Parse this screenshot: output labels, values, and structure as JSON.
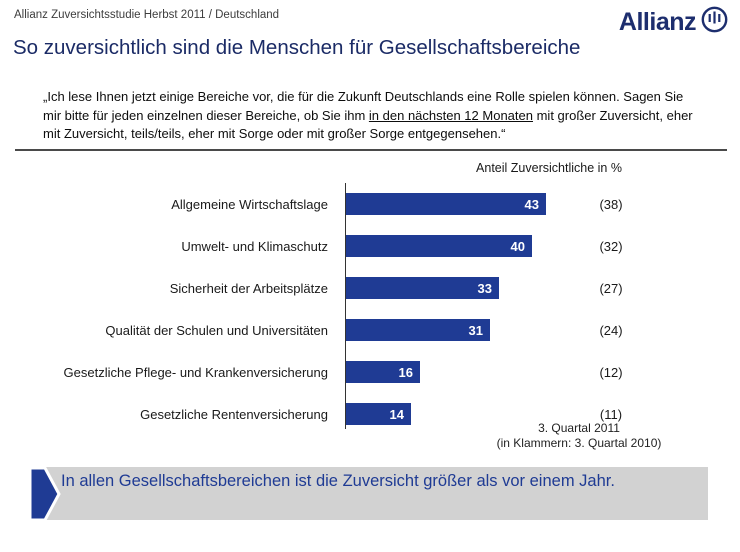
{
  "header": {
    "study_label": "Allianz Zuversichtsstudie Herbst 2011 / Deutschland",
    "logo_text": "Allianz"
  },
  "title": "So zuversichtlich sind die Menschen für Gesellschaftsbereiche",
  "quote": {
    "part1": "„Ich lese Ihnen jetzt einige Bereiche vor, die für die Zukunft Deutschlands eine Rolle spielen können. Sagen Sie mir bitte für jeden einzelnen dieser Bereiche, ob Sie ihm ",
    "underlined": "in den nächsten 12 Monaten",
    "part2": " mit großer Zuversicht, eher mit Zuversicht, teils/teils, eher mit Sorge oder mit großer Sorge entgegensehen.“"
  },
  "chart_data": {
    "type": "bar",
    "orientation": "horizontal",
    "title": "Anteil Zuversichtliche in %",
    "categories": [
      "Allgemeine Wirtschaftslage",
      "Umwelt- und Klimaschutz",
      "Sicherheit der Arbeitsplätze",
      "Qualität der Schulen und Universitäten",
      "Gesetzliche Pflege- und Krankenversicherung",
      "Gesetzliche Rentenversicherung"
    ],
    "series": [
      {
        "name": "3. Quartal 2011",
        "values": [
          43,
          40,
          33,
          31,
          16,
          14
        ]
      },
      {
        "name": "3. Quartal 2010",
        "values": [
          38,
          32,
          27,
          24,
          12,
          11
        ]
      }
    ],
    "paren_labels": [
      "(38)",
      "(32)",
      "(27)",
      "(24)",
      "(12)",
      "(11)"
    ],
    "xlim": [
      0,
      50
    ],
    "bar_color": "#1f3b94",
    "grid": false,
    "legend_position": "none",
    "footnote_line1": "3. Quartal 2011",
    "footnote_line2": "(in Klammern: 3. Quartal 2010)"
  },
  "callout": {
    "text": "In allen Gesellschaftsbereichen ist die Zuversicht größer als vor einem Jahr."
  },
  "colors": {
    "title_blue": "#1b2b66",
    "logo_blue": "#1d2e6e",
    "bar_blue": "#1f3b94",
    "callout_bg": "#d2d2d2",
    "callout_text": "#1f3b94"
  }
}
